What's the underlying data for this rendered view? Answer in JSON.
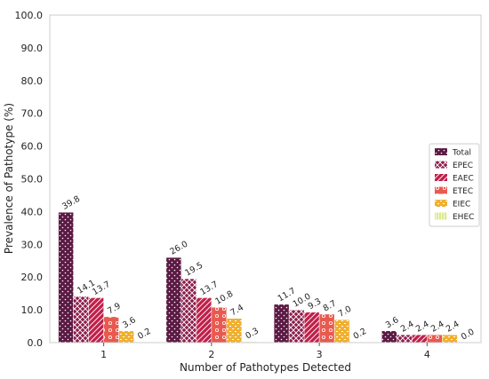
{
  "chart_data": {
    "type": "bar",
    "title": "",
    "xlabel": "Number of Pathotypes Detected",
    "ylabel": "Prevalence of Pathotype (%)",
    "categories": [
      "1",
      "2",
      "3",
      "4"
    ],
    "ylim": [
      0,
      100
    ],
    "yticks": [
      "0.0",
      "10.0",
      "20.0",
      "30.0",
      "40.0",
      "50.0",
      "60.0",
      "70.0",
      "80.0",
      "90.0",
      "100.0"
    ],
    "legend_position": "right",
    "grid": false,
    "series": [
      {
        "name": "Total",
        "values": [
          39.8,
          26.0,
          11.7,
          3.6
        ],
        "labels": [
          "39.8",
          "26.0",
          "11.7",
          "3.6"
        ],
        "color": "#5b1a43",
        "pattern": "dots"
      },
      {
        "name": "EPEC",
        "values": [
          14.1,
          19.5,
          10.0,
          2.4
        ],
        "labels": [
          "14.1",
          "19.5",
          "10.0",
          "2.4"
        ],
        "color": "#8c1e4b",
        "pattern": "crosshatch"
      },
      {
        "name": "EAEC",
        "values": [
          13.7,
          13.7,
          9.3,
          2.4
        ],
        "labels": [
          "13.7",
          "13.7",
          "9.3",
          "2.4"
        ],
        "color": "#c0204a",
        "pattern": "diagonal"
      },
      {
        "name": "ETEC",
        "values": [
          7.9,
          10.8,
          8.7,
          2.4
        ],
        "labels": [
          "7.9",
          "10.8",
          "8.7",
          "2.4"
        ],
        "color": "#e85a4f",
        "pattern": "circles"
      },
      {
        "name": "EIEC",
        "values": [
          3.6,
          7.4,
          7.0,
          2.4
        ],
        "labels": [
          "3.6",
          "7.4",
          "7.0",
          "2.4"
        ],
        "color": "#f0b030",
        "pattern": "dashes"
      },
      {
        "name": "EHEC",
        "values": [
          0.2,
          0.3,
          0.2,
          0.0
        ],
        "labels": [
          "0.2",
          "0.3",
          "0.2",
          "0.0"
        ],
        "color": "#d8ea8a",
        "pattern": "vlines"
      }
    ]
  }
}
